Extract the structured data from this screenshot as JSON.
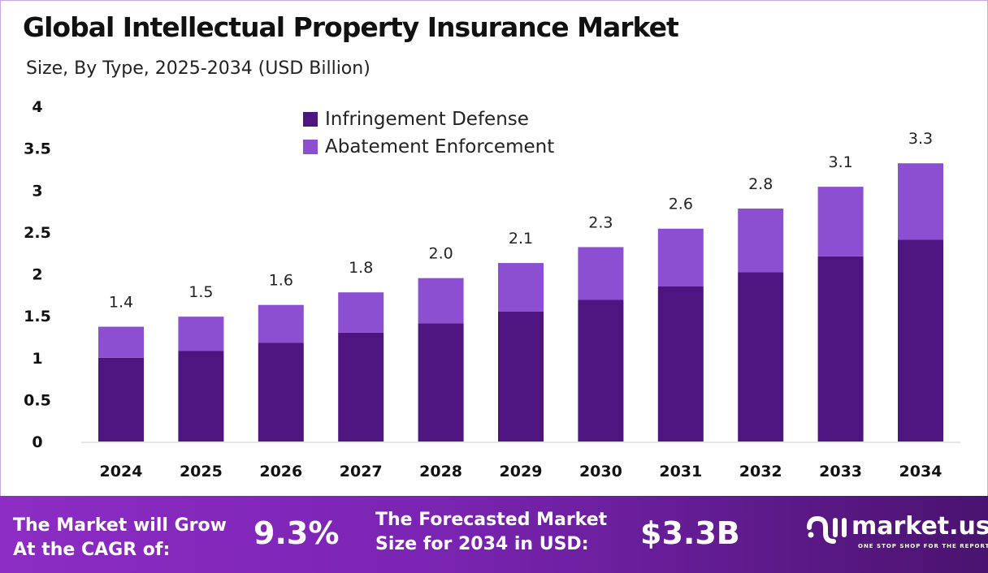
{
  "chart_data": {
    "type": "bar",
    "stacked": true,
    "title": "Global Intellectual Property Insurance Market",
    "subtitle": "Size, By Type, 2025-2034 (USD Billion)",
    "categories": [
      "2024",
      "2025",
      "2026",
      "2027",
      "2028",
      "2029",
      "2030",
      "2031",
      "2032",
      "2033",
      "2034"
    ],
    "series": [
      {
        "name": "Infringement Defense",
        "color": "#4e1580",
        "values": [
          1.0,
          1.08,
          1.18,
          1.3,
          1.41,
          1.55,
          1.69,
          1.85,
          2.02,
          2.21,
          2.41
        ]
      },
      {
        "name": "Abatement Enforcement",
        "color": "#8d4fd1",
        "values": [
          0.37,
          0.41,
          0.45,
          0.48,
          0.54,
          0.58,
          0.63,
          0.69,
          0.76,
          0.83,
          0.91
        ]
      }
    ],
    "totals_labels": [
      "1.4",
      "1.5",
      "1.6",
      "1.8",
      "2.0",
      "2.1",
      "2.3",
      "2.6",
      "2.8",
      "3.1",
      "3.3"
    ],
    "yticks": [
      "0",
      "0.5",
      "1",
      "1.5",
      "2",
      "2.5",
      "3",
      "3.5",
      "4"
    ],
    "ylim": [
      0,
      4
    ],
    "grid": false,
    "legend_position": "top-center"
  },
  "footer": {
    "cagr_label_1": "The Market will Grow",
    "cagr_label_2": "At the CAGR of:",
    "cagr_value": "9.3%",
    "forecast_label_1": "The Forecasted Market",
    "forecast_label_2": "Size for 2034 in USD:",
    "forecast_value": "$3.3B",
    "logo_name": "market.us",
    "logo_tagline": "ONE STOP SHOP FOR THE REPORTS"
  }
}
